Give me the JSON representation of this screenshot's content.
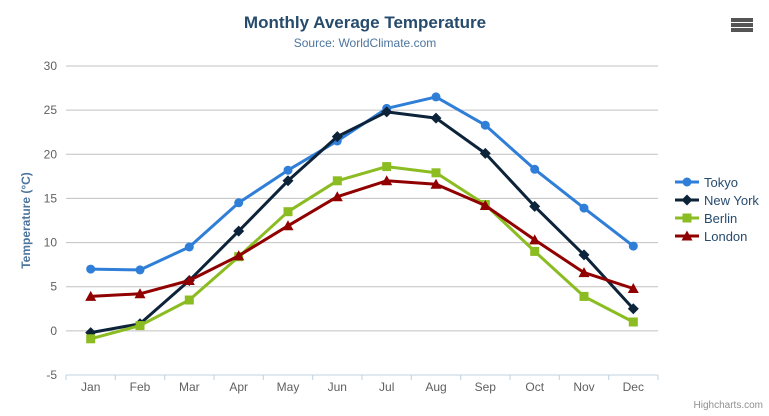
{
  "chart_data": {
    "type": "line",
    "title": "Monthly Average Temperature",
    "subtitle": "Source: WorldClimate.com",
    "categories": [
      "Jan",
      "Feb",
      "Mar",
      "Apr",
      "May",
      "Jun",
      "Jul",
      "Aug",
      "Sep",
      "Oct",
      "Nov",
      "Dec"
    ],
    "series": [
      {
        "name": "Tokyo",
        "color": "#2f7ed8",
        "marker": "circle",
        "values": [
          7.0,
          6.9,
          9.5,
          14.5,
          18.2,
          21.5,
          25.2,
          26.5,
          23.3,
          18.3,
          13.9,
          9.6
        ]
      },
      {
        "name": "New York",
        "color": "#0d233a",
        "marker": "diamond",
        "values": [
          -0.2,
          0.8,
          5.7,
          11.3,
          17.0,
          22.0,
          24.8,
          24.1,
          20.1,
          14.1,
          8.6,
          2.5
        ]
      },
      {
        "name": "Berlin",
        "color": "#8bbc21",
        "marker": "square",
        "values": [
          -0.9,
          0.6,
          3.5,
          8.4,
          13.5,
          17.0,
          18.6,
          17.9,
          14.3,
          9.0,
          3.9,
          1.0
        ]
      },
      {
        "name": "London",
        "color": "#910000",
        "marker": "triangle",
        "values": [
          3.9,
          4.2,
          5.7,
          8.5,
          11.9,
          15.2,
          17.0,
          16.6,
          14.2,
          10.3,
          6.6,
          4.8
        ]
      }
    ],
    "xlabel": "",
    "ylabel": "Temperature (°C)",
    "ylim": [
      -5,
      30
    ],
    "y_ticks": [
      -5,
      0,
      5,
      10,
      15,
      20,
      25,
      30
    ],
    "grid": true,
    "legend_position": "right"
  },
  "credits_label": "Highcharts.com",
  "colors": {
    "title": "#274b6d",
    "subtitle": "#4d759e",
    "legend_text": "#274b6d",
    "tick_label": "#606060",
    "grid": "#c0c0c0",
    "axis_line": "#c0d0e0",
    "credits": "#909090",
    "menu_icon": "#555555"
  }
}
